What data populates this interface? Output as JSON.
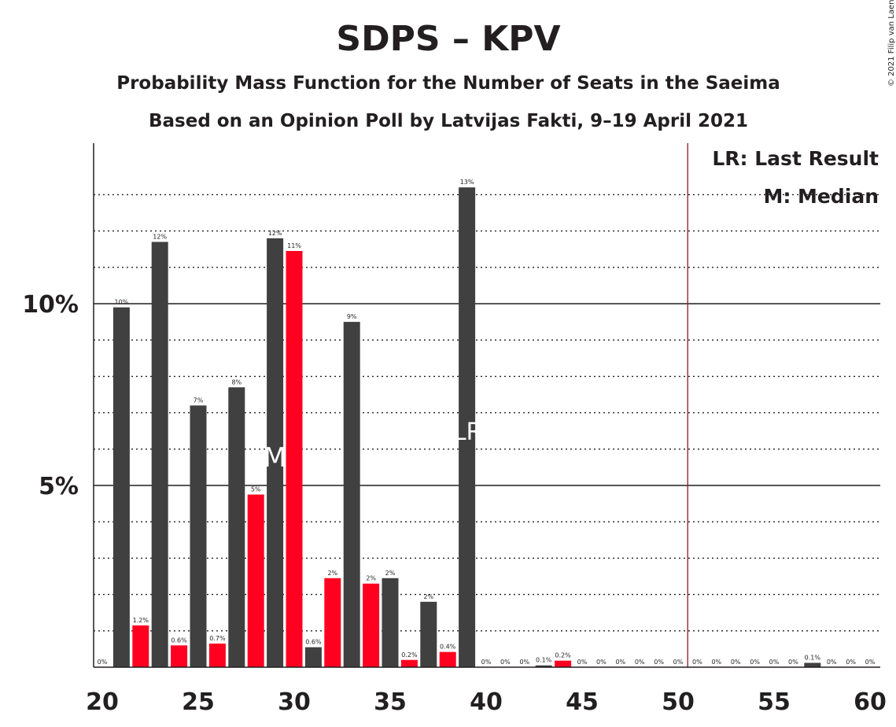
{
  "copyright": "© 2021 Filip van Laenen",
  "chart_data": {
    "type": "bar",
    "title": "SDPS – KPV",
    "subtitle1": "Probability Mass Function for the Number of Seats in the Saeima",
    "subtitle2": "Based on an Opinion Poll by Latvijas Fakti, 9–19 April 2021",
    "xlim": [
      20,
      60
    ],
    "ylim": [
      0,
      14.5
    ],
    "xticks": [
      20,
      25,
      30,
      35,
      40,
      45,
      50,
      55,
      60
    ],
    "yticks": [
      {
        "value": 5,
        "label": "5%"
      },
      {
        "value": 10,
        "label": "10%"
      }
    ],
    "minor_gridlines": [
      1,
      2,
      3,
      4,
      6,
      7,
      8,
      9,
      11,
      12,
      13
    ],
    "majority_line": 50.5,
    "legend": {
      "position": "top-right",
      "items": [
        "LR: Last Result",
        "M: Median"
      ]
    },
    "median_seat": 29,
    "median_marker": "M",
    "last_result_seat": 39,
    "last_result_marker": "LR",
    "colors": {
      "dark": "#404040",
      "red": "#ff0020",
      "majority": "#8b1a1a",
      "text": "#231f20"
    },
    "series": [
      {
        "color": "#404040",
        "x": [
          20,
          21,
          23,
          25,
          27,
          29,
          31,
          33,
          35,
          37,
          39,
          41,
          43,
          45,
          47,
          49,
          51,
          53,
          55,
          57,
          59
        ],
        "values": [
          0,
          9.9,
          11.7,
          7.2,
          7.7,
          11.8,
          0.55,
          9.5,
          2.45,
          1.8,
          13.2,
          0,
          0.05,
          0,
          0,
          0,
          0,
          0,
          0,
          0.12,
          0
        ],
        "labels": [
          "0%",
          "10%",
          "12%",
          "7%",
          "8%",
          "12%",
          "0.6%",
          "9%",
          "2%",
          "2%",
          "13%",
          "0%",
          "0.1%",
          "0%",
          "0%",
          "0%",
          "0%",
          "0%",
          "0%",
          "0.1%",
          "0%"
        ]
      },
      {
        "color": "#ff0020",
        "x": [
          22,
          24,
          26,
          28,
          30,
          32,
          34,
          36,
          38,
          40,
          42,
          44,
          46,
          48,
          50,
          52,
          54,
          56,
          58,
          60
        ],
        "values": [
          1.15,
          0.6,
          0.65,
          4.75,
          11.45,
          2.45,
          2.3,
          0.2,
          0.42,
          0,
          0,
          0.18,
          0,
          0,
          0,
          0,
          0,
          0,
          0,
          0
        ],
        "labels": [
          "1.2%",
          "0.6%",
          "0.7%",
          "5%",
          "11%",
          "2%",
          "2%",
          "0.2%",
          "0.4%",
          "0%",
          "0%",
          "0.2%",
          "0%",
          "0%",
          "0%",
          "0%",
          "0%",
          "0%",
          "0%",
          "0%"
        ]
      }
    ]
  }
}
